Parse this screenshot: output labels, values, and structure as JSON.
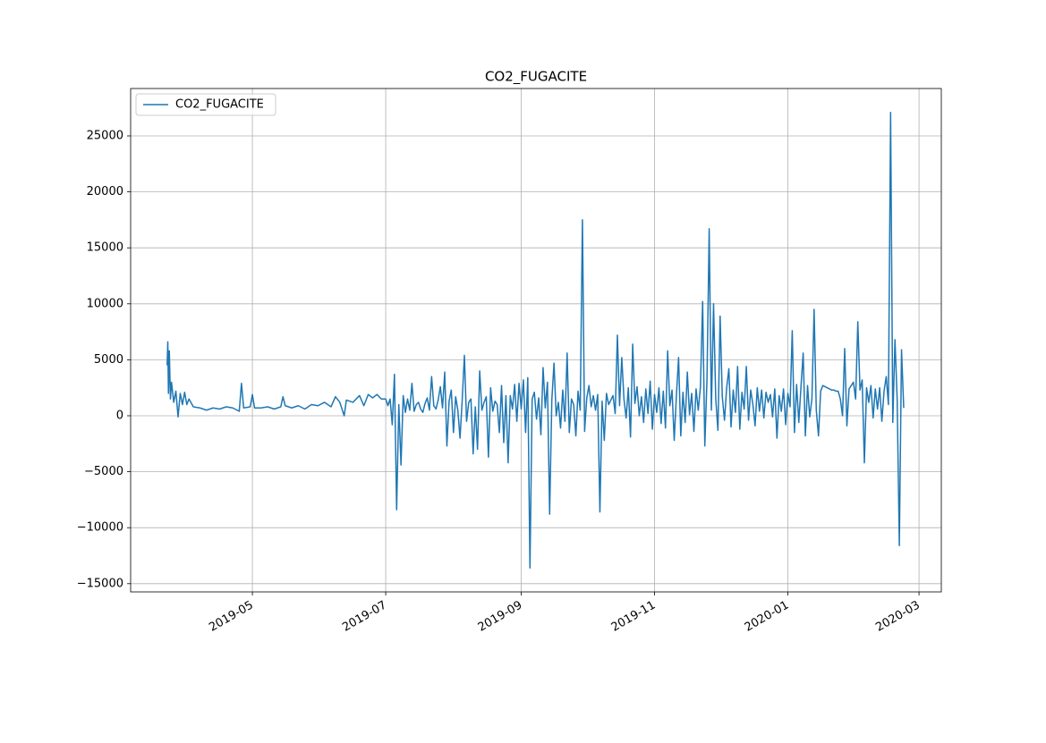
{
  "chart_data": {
    "type": "line",
    "title": "CO2_FUGACITE",
    "x": [
      17978,
      17978.3,
      17978.6,
      17979,
      17979.5,
      17980,
      17981,
      17982,
      17983,
      17984,
      17985,
      17986,
      17987,
      17988,
      17990,
      17993,
      17996,
      17999,
      18002,
      18005,
      18008,
      18011,
      18012,
      18013,
      18016,
      18017,
      18018,
      18021,
      18024,
      18027,
      18030,
      18031,
      18032,
      18035,
      18038,
      18041,
      18044,
      18047,
      18050,
      18053,
      18055,
      18057,
      18059,
      18060,
      18063,
      18066,
      18068,
      18070,
      18072,
      18074,
      18076,
      18078,
      18079,
      18080,
      18081,
      18082,
      18083,
      18084,
      18085,
      18086,
      18087,
      18088,
      18089,
      18090,
      18091,
      18092,
      18093,
      18094,
      18095,
      18096,
      18097,
      18098,
      18099,
      18100,
      18101,
      18102,
      18103,
      18104,
      18105,
      18106,
      18107,
      18108,
      18109,
      18110,
      18111,
      18112,
      18113,
      18114,
      18115,
      18116,
      18117,
      18118,
      18119,
      18120,
      18121,
      18122,
      18123,
      18124,
      18125,
      18126,
      18127,
      18128,
      18129,
      18130,
      18131,
      18132,
      18133,
      18134,
      18135,
      18136,
      18137,
      18138,
      18139,
      18140,
      18141,
      18142,
      18143,
      18144,
      18145,
      18146,
      18147,
      18148,
      18149,
      18150,
      18151,
      18152,
      18153,
      18154,
      18155,
      18156,
      18157,
      18158,
      18159,
      18160,
      18161,
      18162,
      18163,
      18164,
      18165,
      18166,
      18167,
      18168,
      18169,
      18170,
      18171,
      18172,
      18173,
      18174,
      18175,
      18176,
      18177,
      18178,
      18179,
      18180,
      18181,
      18182,
      18183,
      18184,
      18185,
      18186,
      18187,
      18188,
      18189,
      18190,
      18191,
      18192,
      18193,
      18194,
      18195,
      18196,
      18197,
      18198,
      18199,
      18200,
      18201,
      18202,
      18203,
      18204,
      18205,
      18206,
      18207,
      18208,
      18209,
      18210,
      18211,
      18212,
      18213,
      18214,
      18215,
      18216,
      18217,
      18218,
      18219,
      18220,
      18221,
      18222,
      18223,
      18224,
      18225,
      18226,
      18227,
      18228,
      18229,
      18230,
      18231,
      18232,
      18233,
      18234,
      18235,
      18236,
      18237,
      18238,
      18239,
      18240,
      18241,
      18242,
      18243,
      18244,
      18245,
      18246,
      18247,
      18248,
      18249,
      18250,
      18251,
      18252,
      18253,
      18254,
      18255,
      18256,
      18257,
      18258,
      18259,
      18260,
      18261,
      18262,
      18263,
      18264,
      18265,
      18266,
      18267,
      18268,
      18269,
      18270,
      18271,
      18272,
      18273,
      18274,
      18275,
      18276,
      18277,
      18278,
      18279,
      18280,
      18281,
      18282,
      18283,
      18284,
      18285,
      18286,
      18287,
      18288,
      18289,
      18290,
      18291,
      18292,
      18293,
      18294,
      18295,
      18296,
      18297,
      18298,
      18299,
      18300,
      18301,
      18302,
      18303,
      18304,
      18305,
      18306,
      18307,
      18308,
      18309,
      18310,
      18311,
      18312,
      18313,
      18314,
      18315
    ],
    "series": [
      {
        "name": "CO2_FUGACITE",
        "color": "#1f77b4",
        "values": [
          4500,
          6600,
          2000,
          5800,
          1500,
          3000,
          1200,
          2200,
          -100,
          2000,
          1000,
          2100,
          1000,
          1500,
          800,
          700,
          500,
          700,
          600,
          800,
          700,
          400,
          2900,
          700,
          800,
          1900,
          700,
          700,
          800,
          600,
          800,
          1700,
          900,
          700,
          900,
          600,
          1000,
          900,
          1200,
          800,
          1700,
          1200,
          0,
          1400,
          1200,
          1800,
          900,
          1900,
          1600,
          1900,
          1500,
          1500,
          900,
          1500,
          -800,
          3700,
          -8400,
          1000,
          -4400,
          1800,
          300,
          1500,
          500,
          2900,
          400,
          1000,
          1200,
          600,
          300,
          1100,
          1600,
          500,
          3500,
          900,
          600,
          1400,
          2600,
          700,
          3900,
          -2700,
          1300,
          2300,
          -1500,
          1700,
          500,
          -2000,
          1400,
          5400,
          -500,
          1200,
          1500,
          -3400,
          800,
          -3000,
          4000,
          500,
          1200,
          1700,
          -3700,
          2500,
          400,
          1300,
          1000,
          -1500,
          2700,
          -2400,
          1800,
          -4200,
          1800,
          600,
          2800,
          -500,
          2900,
          600,
          3200,
          -1500,
          3400,
          -13600,
          1500,
          2100,
          -300,
          1600,
          -1700,
          4300,
          700,
          3000,
          -8800,
          1400,
          4700,
          0,
          1200,
          -1100,
          2300,
          -500,
          5600,
          -1500,
          1500,
          1000,
          -1800,
          2200,
          500,
          17500,
          -1400,
          1600,
          2700,
          800,
          1800,
          500,
          1900,
          -8600,
          1300,
          -2200,
          2000,
          1000,
          1400,
          1800,
          200,
          7200,
          900,
          5200,
          1500,
          -200,
          2500,
          -1900,
          6400,
          1100,
          2600,
          0,
          1700,
          -600,
          2400,
          200,
          3100,
          -1200,
          1900,
          300,
          2500,
          -700,
          2200,
          -1100,
          5800,
          900,
          2300,
          -2200,
          1800,
          5200,
          -1800,
          2100,
          -600,
          3900,
          100,
          2000,
          -1400,
          2400,
          500,
          2600,
          10200,
          -2700,
          3300,
          16700,
          500,
          10000,
          1500,
          -1300,
          8900,
          1700,
          -400,
          2500,
          4200,
          -1000,
          2300,
          300,
          4400,
          -1200,
          2100,
          600,
          4400,
          -400,
          2300,
          1000,
          -900,
          2500,
          400,
          2300,
          -200,
          2100,
          1200,
          1900,
          -100,
          2400,
          -2000,
          1800,
          400,
          2400,
          -800,
          2000,
          800,
          7600,
          -1500,
          2800,
          -600,
          2600,
          5600,
          -1800,
          2700,
          -100,
          1500,
          9500,
          500,
          -1800,
          2200,
          2700,
          2600,
          2500,
          2400,
          2300,
          2300,
          2200,
          2200,
          1500,
          0,
          6000,
          -900,
          2400,
          2700,
          3000,
          1500,
          8400,
          2300,
          3200,
          -4200,
          2500,
          1200,
          2700,
          -200,
          2400,
          600,
          2500,
          -500,
          2200,
          3500,
          1000,
          27100,
          -600,
          6800,
          1500,
          -11600,
          5900,
          700
        ]
      }
    ],
    "xlim": [
      17961.3,
      18332.2
    ],
    "xticks": [
      {
        "value": 18017,
        "label": "2019-05"
      },
      {
        "value": 18078,
        "label": "2019-07"
      },
      {
        "value": 18140,
        "label": "2019-09"
      },
      {
        "value": 18201,
        "label": "2019-11"
      },
      {
        "value": 18262,
        "label": "2020-01"
      },
      {
        "value": 18322,
        "label": "2020-03"
      }
    ],
    "ylim": [
      -15735,
      29233
    ],
    "yticks": [
      {
        "value": -15000,
        "label": "−15000"
      },
      {
        "value": -10000,
        "label": "−10000"
      },
      {
        "value": -5000,
        "label": "−5000"
      },
      0,
      5000,
      10000,
      15000,
      20000,
      25000
    ],
    "grid": true,
    "legend": "upper-left"
  }
}
